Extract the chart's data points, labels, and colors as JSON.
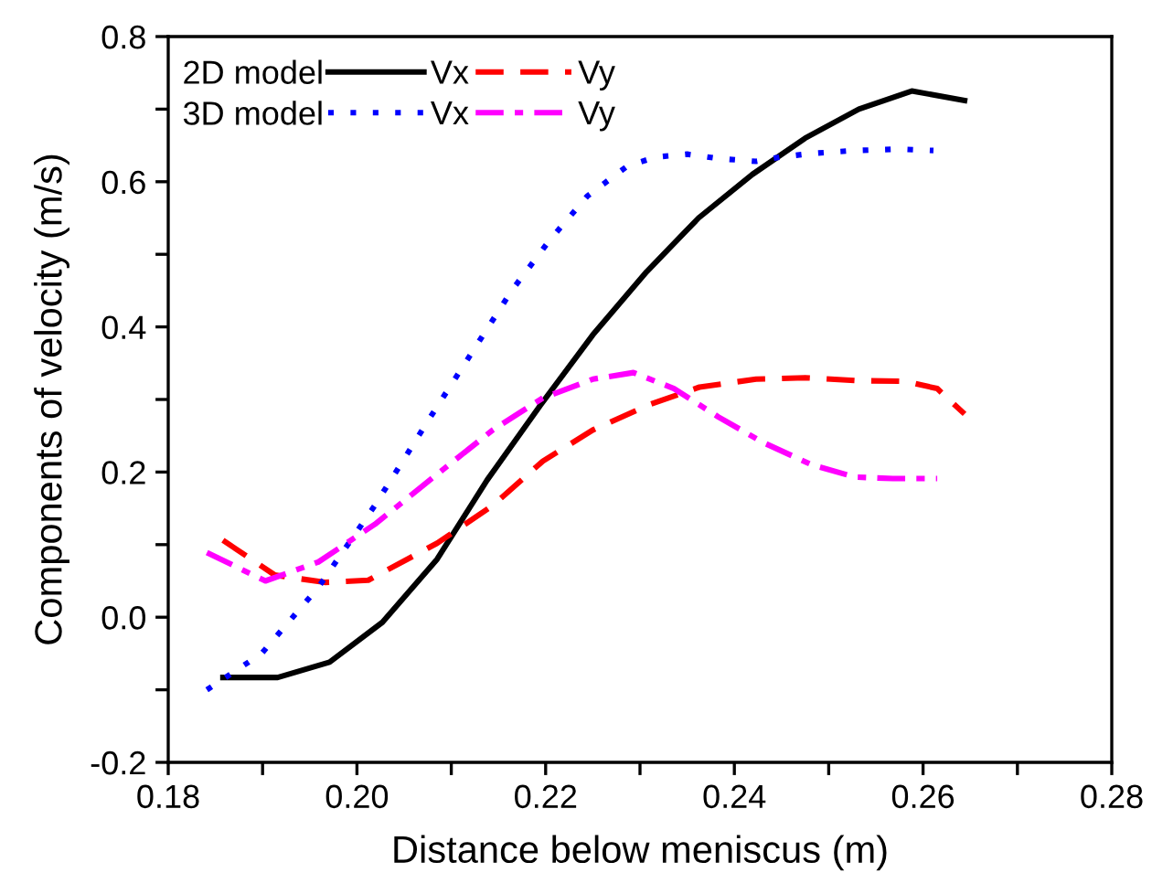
{
  "chart_data": {
    "type": "line",
    "xlabel": "Distance below meniscus (m)",
    "ylabel": "Components of velocity (m/s)",
    "xlim": [
      0.18,
      0.28
    ],
    "ylim": [
      -0.2,
      0.8
    ],
    "xticks": [
      {
        "value": 0.18,
        "label": "0.18"
      },
      {
        "value": 0.19,
        "label": null
      },
      {
        "value": 0.2,
        "label": "0.20"
      },
      {
        "value": 0.21,
        "label": null
      },
      {
        "value": 0.22,
        "label": "0.22"
      },
      {
        "value": 0.23,
        "label": null
      },
      {
        "value": 0.24,
        "label": "0.24"
      },
      {
        "value": 0.25,
        "label": null
      },
      {
        "value": 0.26,
        "label": "0.26"
      },
      {
        "value": 0.27,
        "label": null
      },
      {
        "value": 0.28,
        "label": "0.28"
      }
    ],
    "yticks": [
      {
        "value": -0.2,
        "label": "-0.2"
      },
      {
        "value": -0.1,
        "label": null
      },
      {
        "value": 0.0,
        "label": "0.0"
      },
      {
        "value": 0.1,
        "label": null
      },
      {
        "value": 0.2,
        "label": "0.2"
      },
      {
        "value": 0.3,
        "label": null
      },
      {
        "value": 0.4,
        "label": "0.4"
      },
      {
        "value": 0.5,
        "label": null
      },
      {
        "value": 0.6,
        "label": "0.6"
      },
      {
        "value": 0.7,
        "label": null
      },
      {
        "value": 0.8,
        "label": "0.8"
      }
    ],
    "grid": false,
    "legend": "top left",
    "marker": "none",
    "annotations": [
      "2D model",
      "3D model"
    ],
    "series": [
      {
        "name": "Vx",
        "color": "#000000",
        "line_style": "solid",
        "x": [
          0.1858,
          0.1916,
          0.1971,
          0.2027,
          0.2085,
          0.2138,
          0.2195,
          0.225,
          0.2307,
          0.2362,
          0.2419,
          0.2475,
          0.2532,
          0.2588,
          0.2644
        ],
        "values": [
          -0.083,
          -0.083,
          -0.062,
          -0.007,
          0.08,
          0.189,
          0.293,
          0.389,
          0.476,
          0.55,
          0.61,
          0.66,
          0.7,
          0.725,
          0.712
        ]
      },
      {
        "name": "Vy",
        "color": "#ff0000",
        "line_style": "dashed",
        "x": [
          0.1858,
          0.1913,
          0.1966,
          0.2012,
          0.2085,
          0.2144,
          0.2197,
          0.225,
          0.231,
          0.2363,
          0.2423,
          0.2475,
          0.2528,
          0.2581,
          0.2615,
          0.2644
        ],
        "values": [
          0.106,
          0.058,
          0.048,
          0.051,
          0.102,
          0.154,
          0.215,
          0.258,
          0.293,
          0.317,
          0.328,
          0.33,
          0.326,
          0.325,
          0.315,
          0.28
        ]
      },
      {
        "name": "Vx",
        "color": "#0000ff",
        "line_style": "dotted",
        "x": [
          0.1841,
          0.1899,
          0.1959,
          0.2019,
          0.2078,
          0.2125,
          0.2164,
          0.2204,
          0.2244,
          0.2287,
          0.2317,
          0.235,
          0.2383,
          0.2423,
          0.2449,
          0.2482,
          0.2528,
          0.2575,
          0.2611
        ],
        "values": [
          -0.1,
          -0.05,
          0.041,
          0.154,
          0.276,
          0.371,
          0.45,
          0.519,
          0.58,
          0.622,
          0.634,
          0.638,
          0.632,
          0.628,
          0.634,
          0.639,
          0.643,
          0.645,
          0.643
        ]
      },
      {
        "name": "Vy",
        "color": "#ff00ff",
        "line_style": "dashdot",
        "x": [
          0.1841,
          0.1903,
          0.1959,
          0.2019,
          0.2085,
          0.2144,
          0.2197,
          0.225,
          0.2293,
          0.2336,
          0.2383,
          0.243,
          0.2482,
          0.2528,
          0.2568,
          0.2615
        ],
        "values": [
          0.089,
          0.05,
          0.076,
          0.128,
          0.197,
          0.258,
          0.302,
          0.328,
          0.337,
          0.315,
          0.276,
          0.241,
          0.21,
          0.193,
          0.191,
          0.191
        ]
      }
    ]
  }
}
